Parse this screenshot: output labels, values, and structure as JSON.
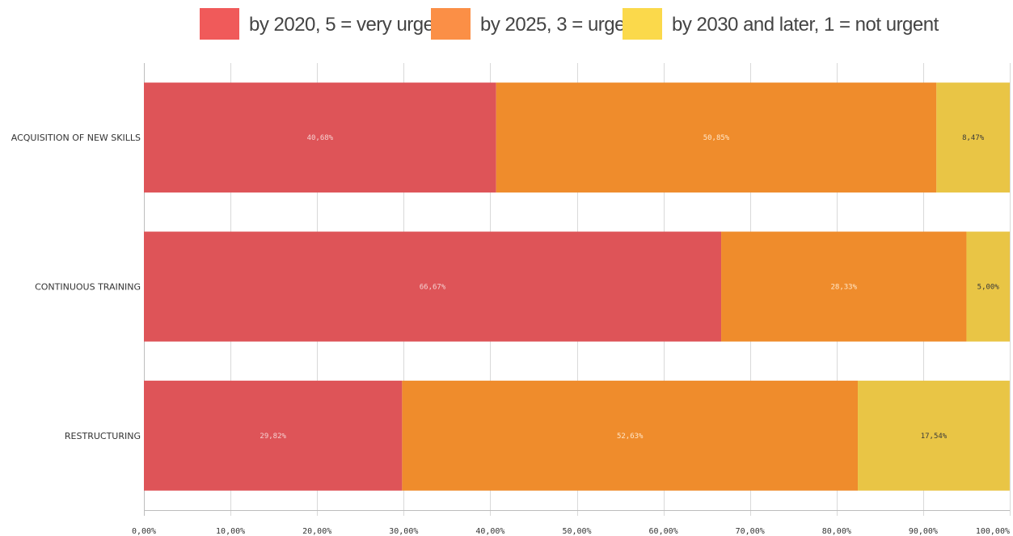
{
  "chart_data": {
    "type": "bar",
    "orientation": "horizontal",
    "stacked": true,
    "categories": [
      "ACQUISITION OF NEW SKILLS",
      "CONTINUOUS TRAINING",
      "RESTRUCTURING"
    ],
    "series": [
      {
        "name": "by 2020, 5 = very urgent",
        "color": "#de5458",
        "label_color": "#f5d0d0",
        "values": [
          40.68,
          66.67,
          29.82
        ],
        "labels": [
          "40,68%",
          "66,67%",
          "29,82%"
        ]
      },
      {
        "name": "by 2025, 3 =  urgent",
        "color": "#ef8c2c",
        "label_color": "#ffe6c8",
        "values": [
          50.85,
          28.33,
          52.63
        ],
        "labels": [
          "50,85%",
          "28,33%",
          "52,63%"
        ]
      },
      {
        "name": "by 2030 and later, 1 = not urgent",
        "color": "#e9c545",
        "label_color": "#3a3a3a",
        "values": [
          8.47,
          5.0,
          17.54
        ],
        "labels": [
          "8,47%",
          "5,00%",
          "17,54%"
        ]
      }
    ],
    "legend_colors": [
      "#f05a5a",
      "#fb8f46",
      "#fbd94b"
    ],
    "xlim": [
      0,
      100
    ],
    "xticks": [
      0,
      10,
      20,
      30,
      40,
      50,
      60,
      70,
      80,
      90,
      100
    ],
    "xtick_labels": [
      "0,00%",
      "10,00%",
      "20,00%",
      "30,00%",
      "40,00%",
      "50,00%",
      "60,00%",
      "70,00%",
      "80,00%",
      "90,00%",
      "100,00%"
    ],
    "grid": true,
    "legend_position": "top"
  }
}
